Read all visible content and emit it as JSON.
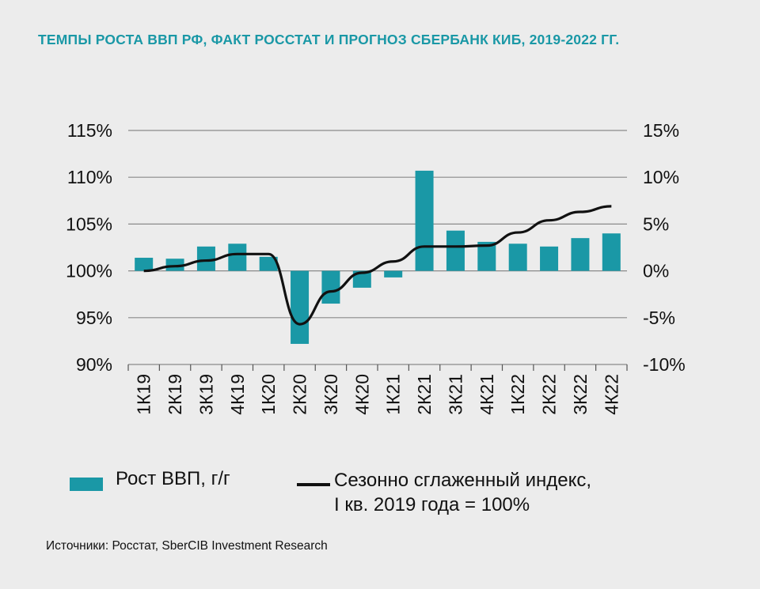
{
  "title": "ТЕМПЫ РОСТА ВВП РФ, ФАКТ РОССТАТ И ПРОГНОЗ СБЕРБАНК КИБ, 2019-2022 ГГ.",
  "source": "Источники: Росстат, SberCIB Investment Research",
  "colors": {
    "bar": "#1a98a6",
    "line": "#111111",
    "grid": "#8a8a8a",
    "title": "#1a98a6"
  },
  "legend": {
    "bar_label": "Рост ВВП, г/г",
    "line_label_1": "Сезонно сглаженный индекс,",
    "line_label_2": "I кв. 2019 года = 100%"
  },
  "chart_data": {
    "type": "bar",
    "categories": [
      "1К19",
      "2К19",
      "3К19",
      "4К19",
      "1К20",
      "2К20",
      "3К20",
      "4К20",
      "1К21",
      "2К21",
      "3К21",
      "4К21",
      "1К22",
      "2К22",
      "3К22",
      "4К22"
    ],
    "left_axis": {
      "ylim": [
        90,
        115
      ],
      "ticks": [
        90,
        95,
        100,
        105,
        110,
        115
      ],
      "tick_labels": [
        "90%",
        "95%",
        "100%",
        "105%",
        "110%",
        "115%"
      ]
    },
    "right_axis": {
      "ylim": [
        -10,
        15
      ],
      "ticks": [
        -10,
        -5,
        0,
        5,
        10,
        15
      ],
      "tick_labels": [
        "-10%",
        "-5%",
        "0%",
        "5%",
        "10%",
        "15%"
      ]
    },
    "grid": true,
    "series": [
      {
        "name": "Рост ВВП, г/г",
        "type": "bar",
        "axis": "right",
        "values": [
          1.4,
          1.3,
          2.6,
          2.9,
          1.5,
          -7.8,
          -3.5,
          -1.8,
          -0.7,
          10.7,
          4.3,
          3.1,
          2.9,
          2.6,
          3.5,
          4.0
        ]
      },
      {
        "name": "Сезонно сглаженный индекс, I кв. 2019 года = 100%",
        "type": "line",
        "axis": "left",
        "values": [
          100.0,
          100.5,
          101.1,
          101.8,
          101.8,
          94.3,
          97.8,
          99.8,
          101.0,
          102.6,
          102.6,
          102.7,
          104.1,
          105.4,
          106.3,
          106.9
        ]
      }
    ]
  }
}
